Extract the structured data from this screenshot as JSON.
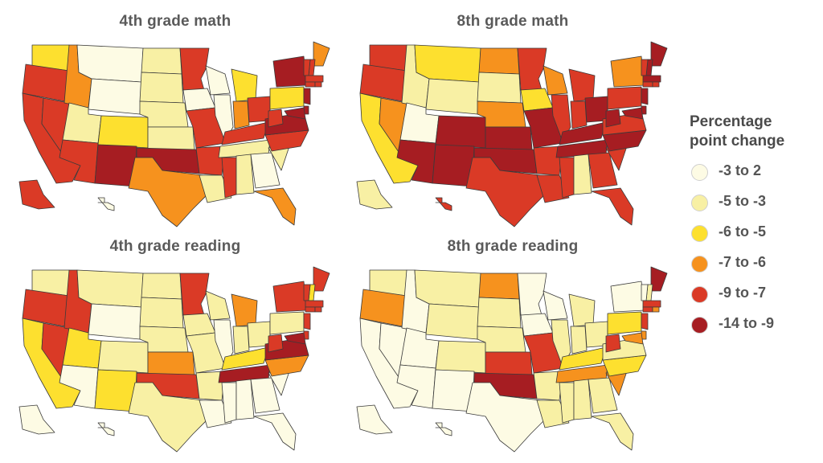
{
  "legend": {
    "title_line1": "Percentage",
    "title_line2": "point change",
    "bins": [
      {
        "label": "-3 to 2",
        "color": "#fdfbe4"
      },
      {
        "label": "-5 to -3",
        "color": "#f8f0a4"
      },
      {
        "label": "-6 to -5",
        "color": "#fde02f"
      },
      {
        "label": "-7 to -6",
        "color": "#f6921e"
      },
      {
        "label": "-9 to -7",
        "color": "#da3a26"
      },
      {
        "label": "-14 to -9",
        "color": "#a61d22"
      }
    ]
  },
  "maps": [
    {
      "title": "4th grade math",
      "states": {
        "WA": 3,
        "OR": 5,
        "CA": 5,
        "NV": 5,
        "ID": 4,
        "MT": 1,
        "WY": 1,
        "UT": 2,
        "AZ": 5,
        "NM": 6,
        "CO": 3,
        "ND": 2,
        "SD": 2,
        "NE": 2,
        "KS": 2,
        "OK": 6,
        "TX": 4,
        "MN": 5,
        "IA": 1,
        "MO": 5,
        "AR": 5,
        "LA": 2,
        "WI": 1,
        "IL": 1,
        "MI": 3,
        "IN": 4,
        "OH": 5,
        "KY": 5,
        "TN": 2,
        "MS": 5,
        "AL": 2,
        "GA": 1,
        "FL": 4,
        "SC": 2,
        "NC": 5,
        "VA": 6,
        "WV": 5,
        "PA": 3,
        "NY": 6,
        "ME": 4,
        "NH": 5,
        "VT": 5,
        "MA": 5,
        "CT": 5,
        "RI": 5,
        "NJ": 6,
        "DE": 6,
        "MD": 6,
        "AK": 5,
        "HI": 1
      }
    },
    {
      "title": "8th grade math",
      "states": {
        "WA": 5,
        "OR": 5,
        "CA": 3,
        "NV": 4,
        "ID": 2,
        "MT": 3,
        "WY": 2,
        "UT": 1,
        "AZ": 6,
        "NM": 6,
        "CO": 6,
        "ND": 4,
        "SD": 2,
        "NE": 4,
        "KS": 6,
        "OK": 6,
        "TX": 5,
        "MN": 5,
        "IA": 3,
        "MO": 6,
        "AR": 5,
        "LA": 5,
        "WI": 4,
        "IL": 5,
        "MI": 5,
        "IN": 5,
        "OH": 6,
        "KY": 6,
        "TN": 6,
        "MS": 5,
        "AL": 2,
        "GA": 5,
        "FL": 5,
        "SC": 5,
        "NC": 6,
        "VA": 5,
        "WV": 6,
        "PA": 5,
        "NY": 4,
        "ME": 6,
        "NH": 6,
        "VT": 5,
        "MA": 6,
        "CT": 5,
        "RI": 5,
        "NJ": 6,
        "DE": 6,
        "MD": 6,
        "AK": 2,
        "HI": 5
      }
    },
    {
      "title": "4th grade reading",
      "states": {
        "WA": 2,
        "OR": 5,
        "CA": 3,
        "NV": 5,
        "ID": 5,
        "MT": 2,
        "WY": 1,
        "UT": 3,
        "AZ": 1,
        "NM": 3,
        "CO": 2,
        "ND": 2,
        "SD": 2,
        "NE": 2,
        "KS": 4,
        "OK": 5,
        "TX": 2,
        "MN": 5,
        "IA": 2,
        "MO": 2,
        "AR": 2,
        "LA": 1,
        "WI": 2,
        "IL": 1,
        "MI": 4,
        "IN": 2,
        "OH": 2,
        "KY": 3,
        "TN": 6,
        "MS": 1,
        "AL": 1,
        "GA": 1,
        "FL": 1,
        "SC": 1,
        "NC": 4,
        "VA": 6,
        "WV": 5,
        "PA": 2,
        "NY": 5,
        "ME": 5,
        "NH": 3,
        "VT": 5,
        "MA": 5,
        "CT": 5,
        "RI": 5,
        "NJ": 5,
        "DE": 5,
        "MD": 6,
        "AK": 1,
        "HI": 1
      }
    },
    {
      "title": "8th grade reading",
      "states": {
        "WA": 2,
        "OR": 4,
        "CA": 1,
        "NV": 1,
        "ID": 1,
        "MT": 2,
        "WY": 2,
        "UT": 1,
        "AZ": 1,
        "NM": 1,
        "CO": 2,
        "ND": 4,
        "SD": 2,
        "NE": 2,
        "KS": 5,
        "OK": 6,
        "TX": 1,
        "MN": 1,
        "IA": 1,
        "MO": 5,
        "AR": 2,
        "LA": 2,
        "WI": 1,
        "IL": 2,
        "MI": 2,
        "IN": 2,
        "OH": 2,
        "KY": 3,
        "TN": 4,
        "MS": 2,
        "AL": 2,
        "GA": 2,
        "FL": 2,
        "SC": 4,
        "NC": 3,
        "VA": 2,
        "WV": 5,
        "PA": 3,
        "NY": 1,
        "ME": 6,
        "NH": 2,
        "VT": 1,
        "MA": 5,
        "CT": 5,
        "RI": 4,
        "NJ": 5,
        "DE": 4,
        "MD": 4,
        "AK": 1,
        "HI": 1
      }
    }
  ]
}
